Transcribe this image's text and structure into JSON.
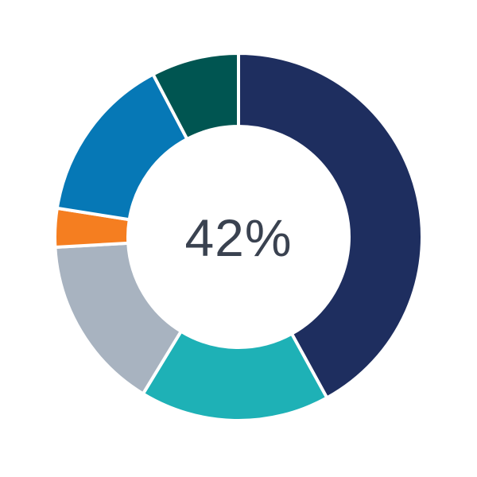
{
  "chart_data": {
    "type": "pie",
    "variant": "donut",
    "direction": "clockwise",
    "start_angle_deg": 0,
    "inner_radius_ratio": 0.6,
    "center_label": "42%",
    "label_color": "#3a4250",
    "separator_color": "#ffffff",
    "background": "#ffffff",
    "segments": [
      {
        "name": "navy",
        "value": 42.0,
        "color": "#1e2e5f"
      },
      {
        "name": "teal",
        "value": 16.7,
        "color": "#1eb1b6"
      },
      {
        "name": "gray",
        "value": 15.4,
        "color": "#a8b3c0"
      },
      {
        "name": "orange",
        "value": 3.4,
        "color": "#f57e20"
      },
      {
        "name": "blue",
        "value": 14.8,
        "color": "#0678b6"
      },
      {
        "name": "dark-green",
        "value": 7.7,
        "color": "#005551"
      }
    ]
  }
}
